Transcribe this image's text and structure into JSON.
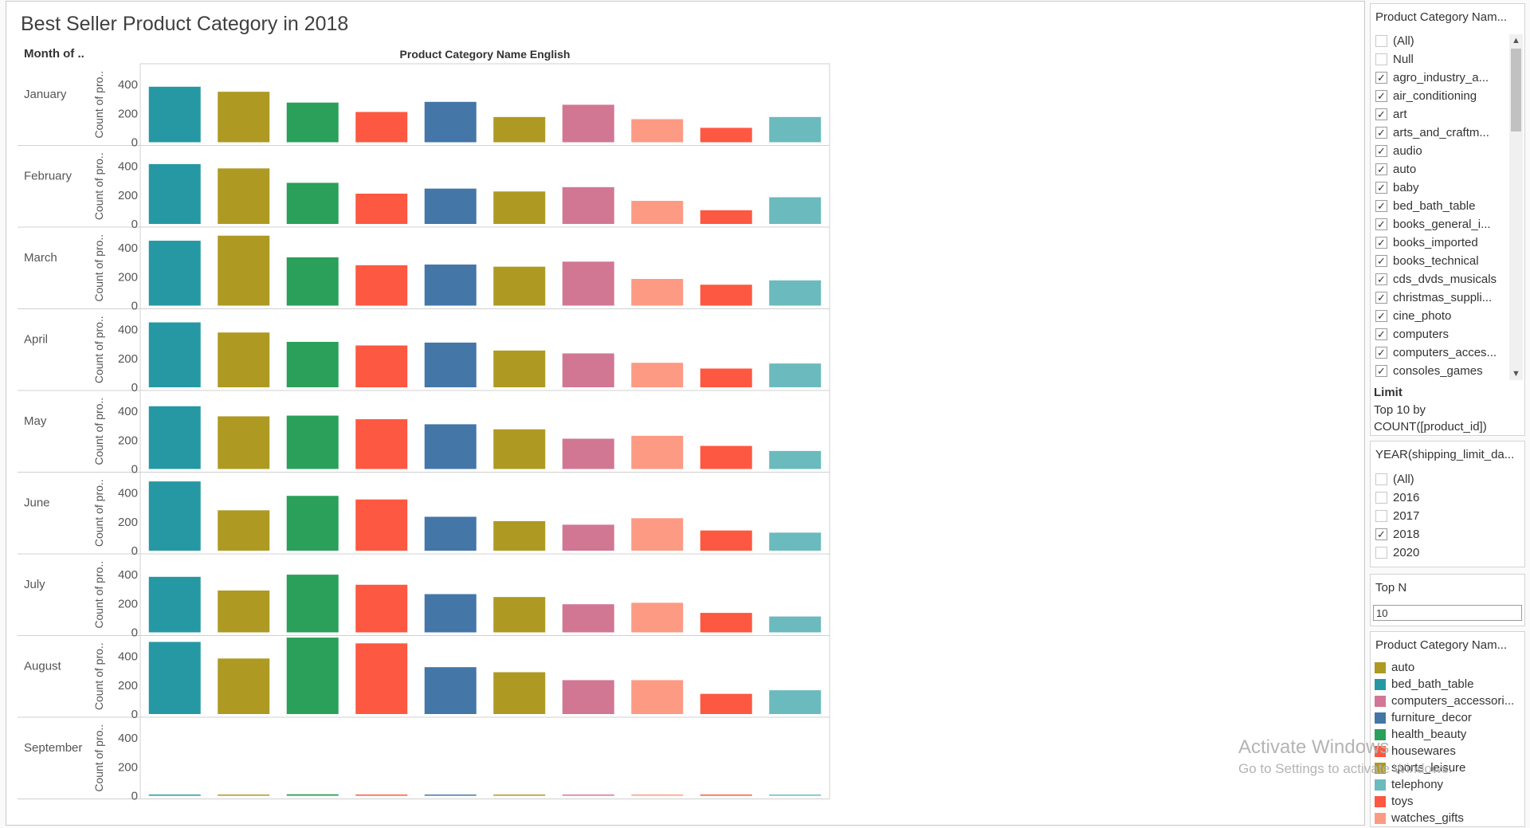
{
  "title": "Best Seller Product Category in 2018",
  "row_header_label": "Month of ..",
  "col_header_label": "Product Category Name English",
  "colors": {
    "auto": "#ae9923",
    "bed_bath_table": "#2698a3",
    "computers_accessories": "#d17793",
    "furniture_decor": "#4476a8",
    "health_beauty": "#2aa05a",
    "housewares": "#fd5841",
    "sports_leisure": "#ae9923",
    "telephony": "#6bbabd",
    "toys": "#fd5841",
    "watches_gifts": "#fd9a84"
  },
  "chart_data": {
    "type": "bar",
    "title": "Best Seller Product Category in 2018",
    "xlabel": "Product Category Name English",
    "ylabel": "Count of pro..",
    "row_label": "Month of ..",
    "ylim": [
      0,
      500
    ],
    "yticks": [
      0,
      200,
      400
    ],
    "categories": [
      "bed_bath_table",
      "sports_leisure",
      "health_beauty",
      "housewares",
      "furniture_decor",
      "auto",
      "computers_accessories",
      "watches_gifts",
      "toys",
      "telephony"
    ],
    "category_labels": [
      "bed_bath..",
      "sports_lei..",
      "health_be..",
      "housewar..",
      "furniture_..",
      "auto",
      "computers..",
      "watches_..",
      "toys",
      "telephony"
    ],
    "rows": [
      {
        "month": "January",
        "values": [
          385,
          350,
          275,
          210,
          280,
          175,
          260,
          160,
          100,
          175
        ]
      },
      {
        "month": "February",
        "values": [
          415,
          385,
          285,
          210,
          245,
          225,
          255,
          160,
          95,
          185
        ]
      },
      {
        "month": "March",
        "values": [
          450,
          485,
          335,
          280,
          285,
          270,
          305,
          185,
          145,
          175
        ]
      },
      {
        "month": "April",
        "values": [
          450,
          380,
          315,
          290,
          310,
          255,
          235,
          170,
          130,
          165
        ]
      },
      {
        "month": "May",
        "values": [
          435,
          365,
          370,
          345,
          310,
          275,
          210,
          230,
          160,
          125
        ]
      },
      {
        "month": "June",
        "values": [
          480,
          280,
          380,
          355,
          235,
          205,
          180,
          225,
          140,
          125
        ]
      },
      {
        "month": "July",
        "values": [
          385,
          290,
          400,
          330,
          265,
          245,
          195,
          205,
          135,
          110
        ]
      },
      {
        "month": "August",
        "values": [
          500,
          385,
          530,
          490,
          325,
          290,
          235,
          235,
          140,
          165
        ]
      },
      {
        "month": "September",
        "values": [
          5,
          5,
          10,
          5,
          5,
          5,
          5,
          5,
          5,
          5
        ]
      }
    ]
  },
  "sidebar": {
    "category_filter": {
      "title": "Product Category Nam...",
      "items": [
        {
          "label": "(All)",
          "checked": false
        },
        {
          "label": "Null",
          "checked": false
        },
        {
          "label": "agro_industry_a...",
          "checked": true
        },
        {
          "label": "air_conditioning",
          "checked": true
        },
        {
          "label": "art",
          "checked": true
        },
        {
          "label": "arts_and_craftm...",
          "checked": true
        },
        {
          "label": "audio",
          "checked": true
        },
        {
          "label": "auto",
          "checked": true
        },
        {
          "label": "baby",
          "checked": true
        },
        {
          "label": "bed_bath_table",
          "checked": true
        },
        {
          "label": "books_general_i...",
          "checked": true
        },
        {
          "label": "books_imported",
          "checked": true
        },
        {
          "label": "books_technical",
          "checked": true
        },
        {
          "label": "cds_dvds_musicals",
          "checked": true
        },
        {
          "label": "christmas_suppli...",
          "checked": true
        },
        {
          "label": "cine_photo",
          "checked": true
        },
        {
          "label": "computers",
          "checked": true
        },
        {
          "label": "computers_acces...",
          "checked": true
        },
        {
          "label": "consoles_games",
          "checked": true
        }
      ],
      "limit_title": "Limit",
      "limit_line1": "Top 10 by",
      "limit_line2": "COUNT([product_id])"
    },
    "year_filter": {
      "title": "YEAR(shipping_limit_da...",
      "items": [
        {
          "label": "(All)",
          "checked": false
        },
        {
          "label": "2016",
          "checked": false
        },
        {
          "label": "2017",
          "checked": false
        },
        {
          "label": "2018",
          "checked": true
        },
        {
          "label": "2020",
          "checked": false
        }
      ]
    },
    "top_n": {
      "title": "Top N",
      "value": "10"
    },
    "legend": {
      "title": "Product Category Nam...",
      "items": [
        {
          "label": "auto",
          "color": "#ae9923"
        },
        {
          "label": "bed_bath_table",
          "color": "#2698a3"
        },
        {
          "label": "computers_accessori...",
          "color": "#d17793"
        },
        {
          "label": "furniture_decor",
          "color": "#4476a8"
        },
        {
          "label": "health_beauty",
          "color": "#2aa05a"
        },
        {
          "label": "housewares",
          "color": "#fd5841"
        },
        {
          "label": "sports_leisure",
          "color": "#ae9923"
        },
        {
          "label": "telephony",
          "color": "#6bbabd"
        },
        {
          "label": "toys",
          "color": "#fd5841"
        },
        {
          "label": "watches_gifts",
          "color": "#fd9a84"
        }
      ]
    }
  },
  "watermark": {
    "line1": "Activate Windows",
    "line2": "Go to Settings to activate Windows."
  }
}
